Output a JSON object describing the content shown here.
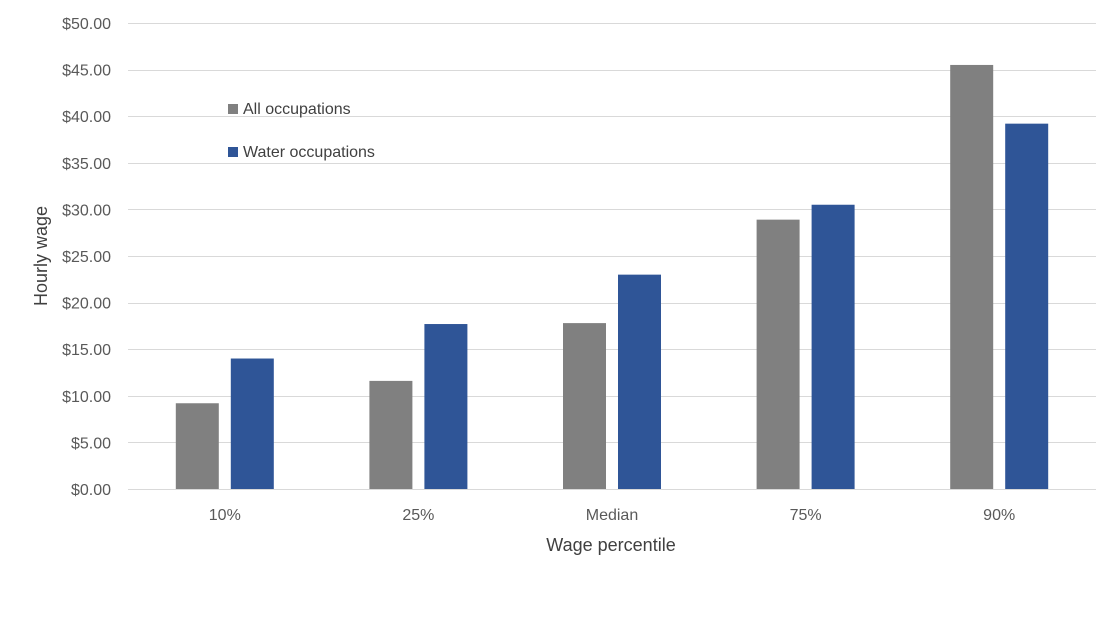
{
  "chart_data": {
    "type": "bar",
    "categories": [
      "10%",
      "25%",
      "Median",
      "75%",
      "90%"
    ],
    "series": [
      {
        "name": "All occupations",
        "values": [
          9.2,
          11.6,
          17.8,
          28.9,
          45.5
        ],
        "color": "#808080"
      },
      {
        "name": "Water occupations",
        "values": [
          14.0,
          17.7,
          23.0,
          30.5,
          39.2
        ],
        "color": "#2F5597"
      }
    ],
    "xlabel": "Wage percentile",
    "ylabel": "Hourly wage",
    "ylim": [
      0,
      50
    ],
    "ytick_values": [
      0,
      5,
      10,
      15,
      20,
      25,
      30,
      35,
      40,
      45,
      50
    ],
    "ytick_labels": [
      "$0.00",
      "$5.00",
      "$10.00",
      "$15.00",
      "$20.00",
      "$25.00",
      "$30.00",
      "$35.00",
      "$40.00",
      "$45.00",
      "$50.00"
    ],
    "grid": true,
    "gridline_color": "#D9D9D9",
    "legend_position": "top-left"
  }
}
